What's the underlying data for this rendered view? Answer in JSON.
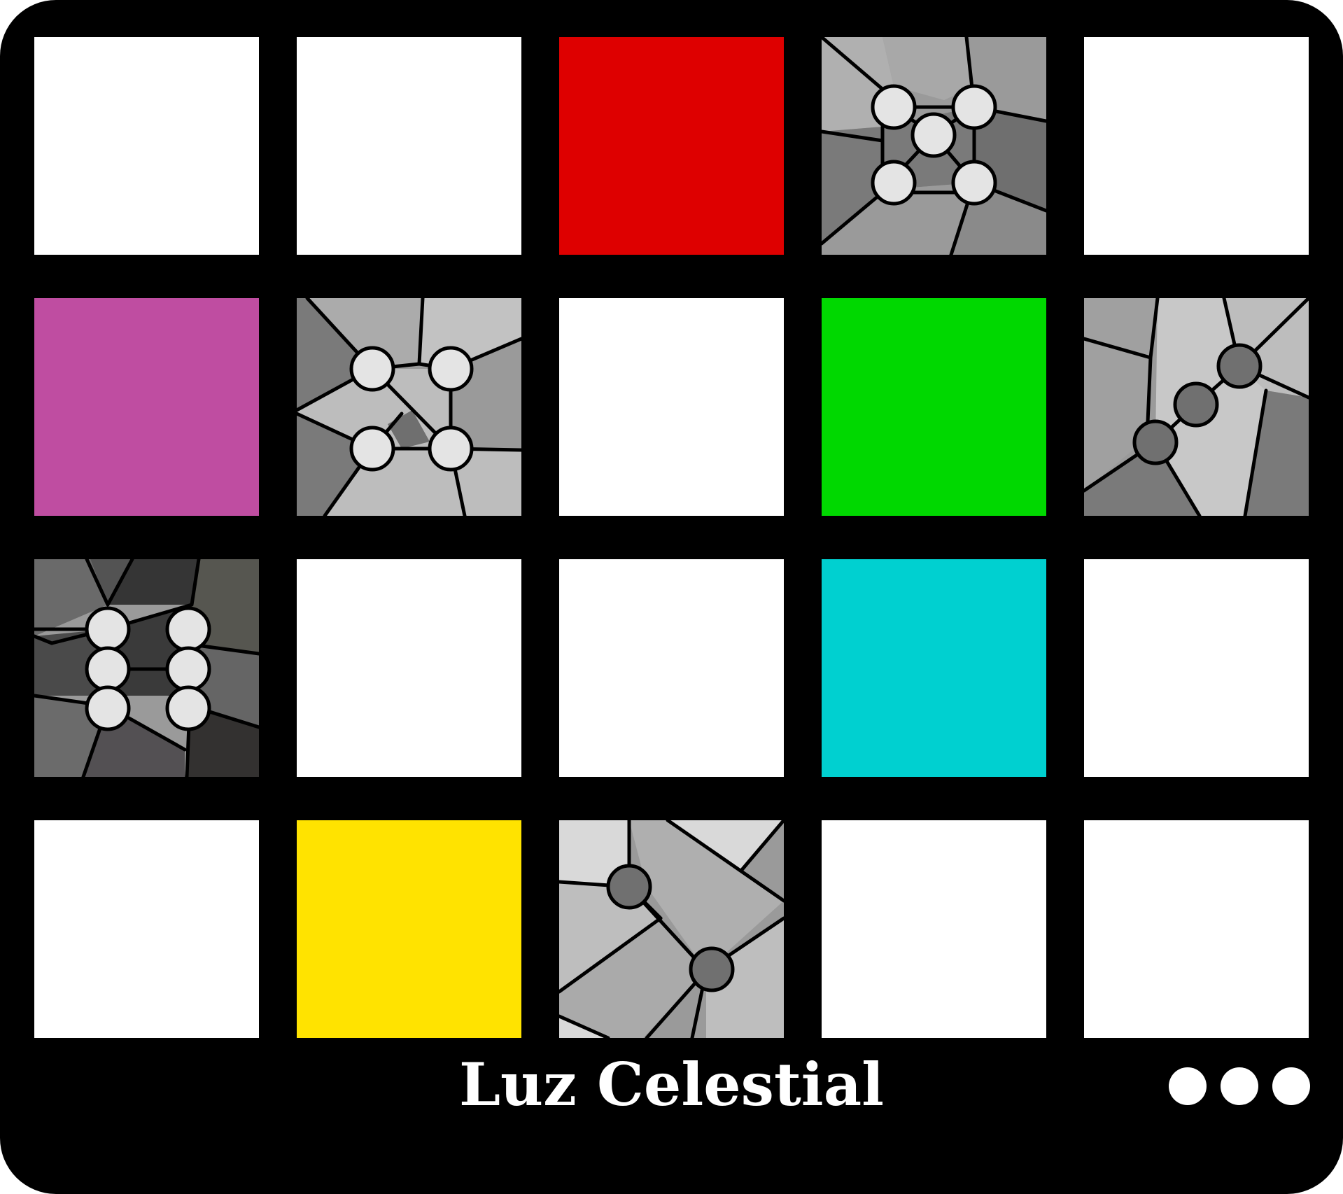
{
  "title": "Luz Celestial",
  "menu_icon": "ellipsis-dots-icon",
  "colors": {
    "background": "#000000",
    "empty": "#ffffff",
    "red": "#de0000",
    "magenta": "#bf4da1",
    "green": "#00d800",
    "cyan": "#00d0d0",
    "yellow": "#ffe300",
    "piece_light": "#e4e4e4",
    "piece_dark": "#707070"
  },
  "grid": {
    "rows": 4,
    "cols": 5,
    "cells": [
      {
        "kind": "empty"
      },
      {
        "kind": "empty"
      },
      {
        "kind": "color",
        "color": "red"
      },
      {
        "kind": "puzzle",
        "puzzle": "p1"
      },
      {
        "kind": "empty"
      },
      {
        "kind": "color",
        "color": "magenta"
      },
      {
        "kind": "puzzle",
        "puzzle": "p2"
      },
      {
        "kind": "empty"
      },
      {
        "kind": "color",
        "color": "green"
      },
      {
        "kind": "puzzle",
        "puzzle": "p3"
      },
      {
        "kind": "puzzle",
        "puzzle": "p4"
      },
      {
        "kind": "empty"
      },
      {
        "kind": "empty"
      },
      {
        "kind": "color",
        "color": "cyan"
      },
      {
        "kind": "empty"
      },
      {
        "kind": "empty"
      },
      {
        "kind": "color",
        "color": "yellow"
      },
      {
        "kind": "puzzle",
        "puzzle": "p5"
      },
      {
        "kind": "empty"
      },
      {
        "kind": "empty"
      }
    ]
  }
}
